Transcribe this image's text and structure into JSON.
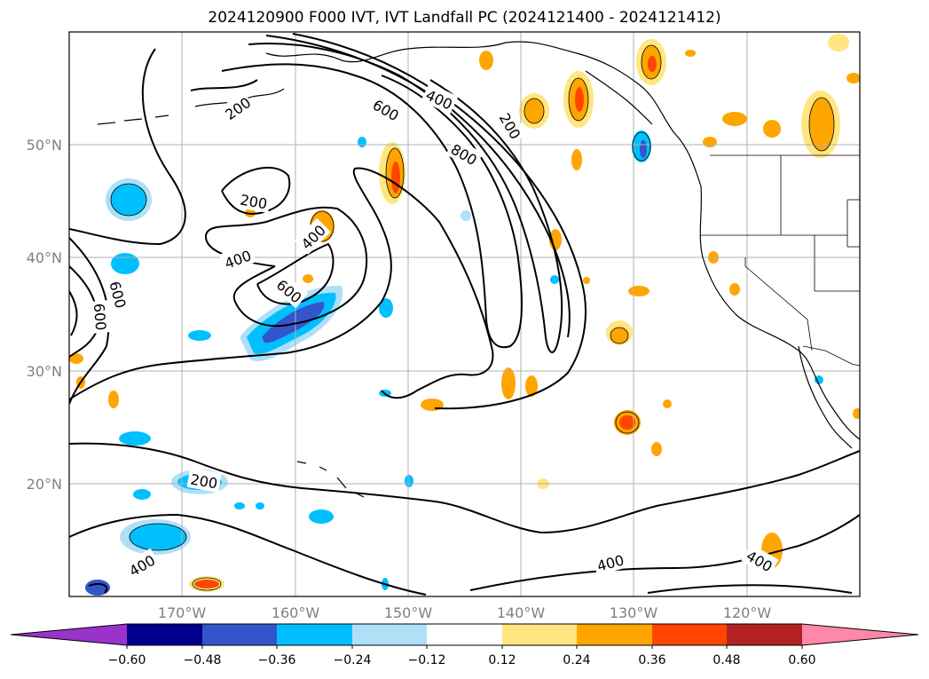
{
  "title": "2024120900 F000 IVT, IVT Landfall PC (2024121400 - 2024121412)",
  "map": {
    "lon_range": [
      -180,
      -110
    ],
    "lat_range": [
      10,
      60
    ],
    "lat_ticks": [
      "50°N",
      "40°N",
      "30°N",
      "20°N"
    ],
    "lon_ticks": [
      "170°W",
      "160°W",
      "150°W",
      "140°W",
      "130°W",
      "120°W"
    ],
    "grid": true,
    "contour_labels": [
      "200",
      "400",
      "600",
      "800",
      "200",
      "600",
      "400",
      "200",
      "400",
      "600",
      "600",
      "200",
      "400",
      "400",
      "400"
    ]
  },
  "colorbar": {
    "ticks": [
      "−0.60",
      "−0.48",
      "−0.36",
      "−0.24",
      "−0.12",
      "0.12",
      "0.24",
      "0.36",
      "0.48",
      "0.60"
    ],
    "colors": [
      "#9933cc",
      "#00008b",
      "#3355cc",
      "#00bfff",
      "#aee0f8",
      "#ffffff",
      "#ffe680",
      "#ffa500",
      "#ff4500",
      "#b22222",
      "#ff88aa"
    ]
  }
}
